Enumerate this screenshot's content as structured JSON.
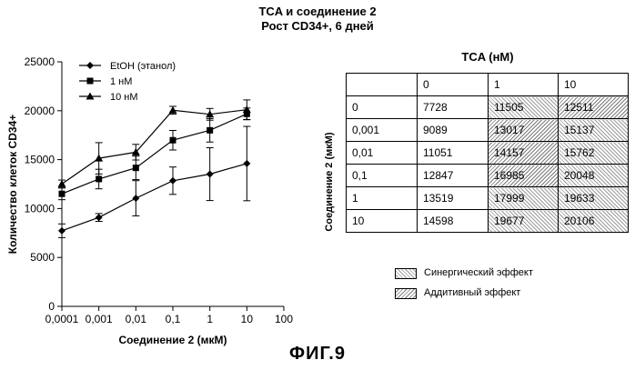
{
  "header": {
    "line1": "TCA и соединение 2",
    "line2": "Рост CD34+, 6 дней"
  },
  "chart_data": {
    "type": "line",
    "xscale": "log",
    "x": [
      0.0001,
      0.001,
      0.01,
      0.1,
      1,
      10
    ],
    "xticks": [
      "0,0001",
      "0,001",
      "0,01",
      "0,1",
      "1",
      "10",
      "100"
    ],
    "xlim": [
      0.0001,
      100
    ],
    "ylim": [
      0,
      25000
    ],
    "yticks": [
      "0",
      "5000",
      "10000",
      "15000",
      "20000",
      "25000"
    ],
    "xlabel": "Соединение 2 (мкМ)",
    "ylabel": "Количество клеток CD34+",
    "legend_position": "top-left",
    "grid": false,
    "series": [
      {
        "name": "EtOH (этанол)",
        "marker": "diamond",
        "values": [
          7728,
          9089,
          11051,
          12847,
          13519,
          14598
        ],
        "errors": [
          700,
          400,
          1800,
          1400,
          2700,
          3800
        ]
      },
      {
        "name": "1 нМ",
        "marker": "square",
        "values": [
          11505,
          13017,
          14157,
          16985,
          17999,
          19677
        ],
        "errors": [
          600,
          1000,
          1200,
          1000,
          1200,
          600
        ]
      },
      {
        "name": "10 нМ",
        "marker": "triangle",
        "values": [
          12511,
          15137,
          15762,
          20048,
          19633,
          20106
        ],
        "errors": [
          400,
          1600,
          800,
          400,
          600,
          1000
        ]
      }
    ]
  },
  "table": {
    "title": "TCA (нМ)",
    "row_header_label": "Соединение 2 (мкМ)",
    "columns": [
      "0",
      "1",
      "10"
    ],
    "rows": [
      {
        "label": "0",
        "cells": [
          "7728",
          "11505",
          "12511"
        ],
        "patterns": [
          "none",
          "synergy",
          "additive"
        ]
      },
      {
        "label": "0,001",
        "cells": [
          "9089",
          "13017",
          "15137"
        ],
        "patterns": [
          "none",
          "additive",
          "synergy"
        ]
      },
      {
        "label": "0,01",
        "cells": [
          "11051",
          "14157",
          "15762"
        ],
        "patterns": [
          "none",
          "additive",
          "synergy"
        ]
      },
      {
        "label": "0,1",
        "cells": [
          "12847",
          "16985",
          "20048"
        ],
        "patterns": [
          "none",
          "additive",
          "synergy"
        ]
      },
      {
        "label": "1",
        "cells": [
          "13519",
          "17999",
          "19633"
        ],
        "patterns": [
          "none",
          "synergy",
          "synergy"
        ]
      },
      {
        "label": "10",
        "cells": [
          "14598",
          "19677",
          "20106"
        ],
        "patterns": [
          "none",
          "synergy",
          "synergy"
        ]
      }
    ],
    "legend": {
      "synergy": "Синергический эффект",
      "additive": "Аддитивный эффект"
    }
  },
  "figure_label": "ФИГ.9"
}
